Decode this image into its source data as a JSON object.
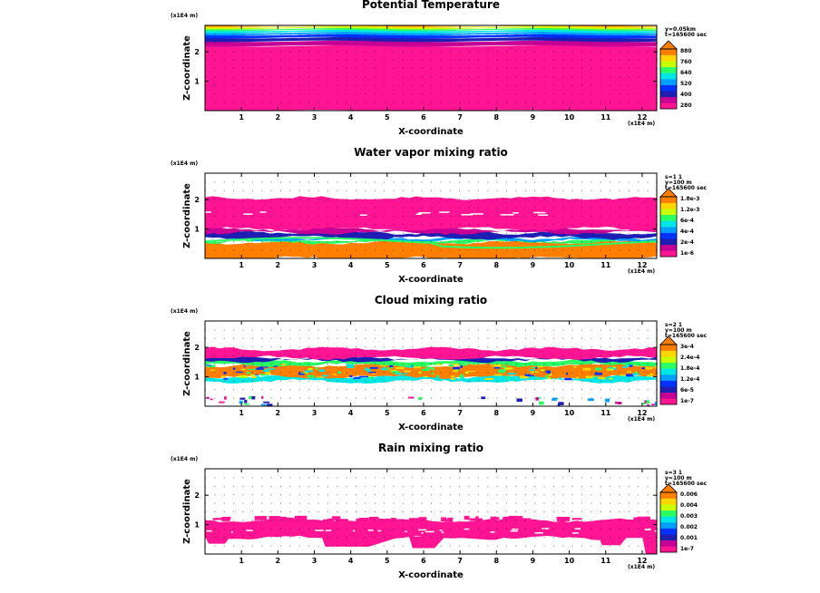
{
  "chart_data": [
    {
      "type": "heatmap",
      "title": "Potential Temperature",
      "xlabel": "X-coordinate",
      "ylabel": "Z-coordinate",
      "x_scale_label": "(x1E4 m)",
      "z_scale_label": "(x1E4 m)",
      "x_ticks": [
        "1",
        "2",
        "3",
        "4",
        "5",
        "6",
        "7",
        "8",
        "9",
        "10",
        "11",
        "12"
      ],
      "z_ticks": [
        "1",
        "2"
      ],
      "xlim": [
        0,
        12.4
      ],
      "zlim": [
        0,
        2.9
      ],
      "info_lines": [
        "y=0.05km",
        "t=165600 sec"
      ],
      "colorbar_labels": [
        "880",
        "760",
        "640",
        "520",
        "400",
        "280"
      ],
      "colors": [
        "#ff1493",
        "#c80096",
        "#1e1eb4",
        "#0032ff",
        "#00a0ff",
        "#00e6e6",
        "#28ff64",
        "#c8ff00",
        "#ffd700",
        "#ff7f00"
      ],
      "layers": [
        {
          "z0": 0.0,
          "z1": 2.2,
          "level": 0
        },
        {
          "z0": 2.2,
          "z1": 2.36,
          "level": 1
        },
        {
          "z0": 2.36,
          "z1": 2.48,
          "level": 2
        },
        {
          "z0": 2.48,
          "z1": 2.58,
          "level": 3
        },
        {
          "z0": 2.58,
          "z1": 2.66,
          "level": 4
        },
        {
          "z0": 2.66,
          "z1": 2.73,
          "level": 5
        },
        {
          "z0": 2.73,
          "z1": 2.79,
          "level": 6
        },
        {
          "z0": 2.79,
          "z1": 2.84,
          "level": 7
        },
        {
          "z0": 2.84,
          "z1": 2.88,
          "level": 8
        },
        {
          "z0": 2.88,
          "z1": 2.9,
          "level": 9
        }
      ]
    },
    {
      "type": "heatmap",
      "title": "Water vapor mixing ratio",
      "xlabel": "X-coordinate",
      "ylabel": "Z-coordinate",
      "x_scale_label": "(x1E4 m)",
      "z_scale_label": "(x1E4 m)",
      "x_ticks": [
        "1",
        "2",
        "3",
        "4",
        "5",
        "6",
        "7",
        "8",
        "9",
        "10",
        "11",
        "12"
      ],
      "z_ticks": [
        "1",
        "2"
      ],
      "xlim": [
        0,
        12.4
      ],
      "zlim": [
        0,
        2.9
      ],
      "info_lines": [
        "s=1 1",
        "y=100 m",
        "t=165600 sec"
      ],
      "colorbar_labels": [
        "1.8e-3",
        "1.2e-3",
        "6e-4",
        "4e-4",
        "2e-4",
        "1e-6"
      ],
      "colors": [
        "#ff1493",
        "#c80096",
        "#1e1eb4",
        "#0032ff",
        "#00a0ff",
        "#00e6e6",
        "#28ff64",
        "#c8ff00",
        "#ffd700",
        "#ff7f00"
      ],
      "layers": [
        {
          "z0": 0.0,
          "z1": 0.55,
          "level": 9
        },
        {
          "z0": 0.55,
          "z1": 0.62,
          "level": 6
        },
        {
          "z0": 0.62,
          "z1": 0.7,
          "level": 4
        },
        {
          "z0": 0.7,
          "z1": 0.88,
          "level": 2
        },
        {
          "z0": 0.88,
          "z1": 1.0,
          "level": 1
        },
        {
          "z0": 1.0,
          "z1": 2.05,
          "level": 0
        }
      ]
    },
    {
      "type": "heatmap",
      "title": "Cloud mixing ratio",
      "xlabel": "X-coordinate",
      "ylabel": "Z-coordinate",
      "x_scale_label": "(x1E4 m)",
      "z_scale_label": "(x1E4 m)",
      "x_ticks": [
        "1",
        "2",
        "3",
        "4",
        "5",
        "6",
        "7",
        "8",
        "9",
        "10",
        "11",
        "12"
      ],
      "z_ticks": [
        "1",
        "2"
      ],
      "xlim": [
        0,
        12.4
      ],
      "zlim": [
        0,
        2.9
      ],
      "info_lines": [
        "s=2 1",
        "y=100 m",
        "t=165600 sec"
      ],
      "colorbar_labels": [
        "3e-4",
        "2.4e-4",
        "1.8e-4",
        "1.2e-4",
        "6e-5",
        "1e-7"
      ],
      "colors": [
        "#ff1493",
        "#c80096",
        "#1e1eb4",
        "#0032ff",
        "#00a0ff",
        "#00e6e6",
        "#28ff64",
        "#c8ff00",
        "#ffd700",
        "#ff7f00"
      ],
      "layers": [
        {
          "z0": 0.85,
          "z1": 1.0,
          "level": 5
        },
        {
          "z0": 1.0,
          "z1": 1.4,
          "level": 9
        },
        {
          "z0": 1.4,
          "z1": 1.55,
          "level": 6
        },
        {
          "z0": 1.55,
          "z1": 1.65,
          "level": 2
        },
        {
          "z0": 1.65,
          "z1": 1.95,
          "level": 0
        }
      ]
    },
    {
      "type": "heatmap",
      "title": "Rain mixing ratio",
      "xlabel": "X-coordinate",
      "ylabel": "Z-coordinate",
      "x_scale_label": "(x1E4 m)",
      "z_scale_label": "(x1E4 m)",
      "x_ticks": [
        "1",
        "2",
        "3",
        "4",
        "5",
        "6",
        "7",
        "8",
        "9",
        "10",
        "11",
        "12"
      ],
      "z_ticks": [
        "1",
        "2"
      ],
      "xlim": [
        0,
        12.4
      ],
      "zlim": [
        0,
        2.9
      ],
      "info_lines": [
        "s=3 1",
        "y=100 m",
        "t=165600 sec"
      ],
      "colorbar_labels": [
        "0.006",
        "0.004",
        "0.003",
        "0.002",
        "0.001",
        "1e-7"
      ],
      "colors": [
        "#ff1493",
        "#c80096",
        "#1e1eb4",
        "#0032ff",
        "#00a0ff",
        "#00e6e6",
        "#28ff64",
        "#c8ff00",
        "#ffd700",
        "#ff7f00"
      ],
      "layers": [
        {
          "z0": 0.55,
          "z1": 1.15,
          "level": 0
        }
      ]
    }
  ]
}
